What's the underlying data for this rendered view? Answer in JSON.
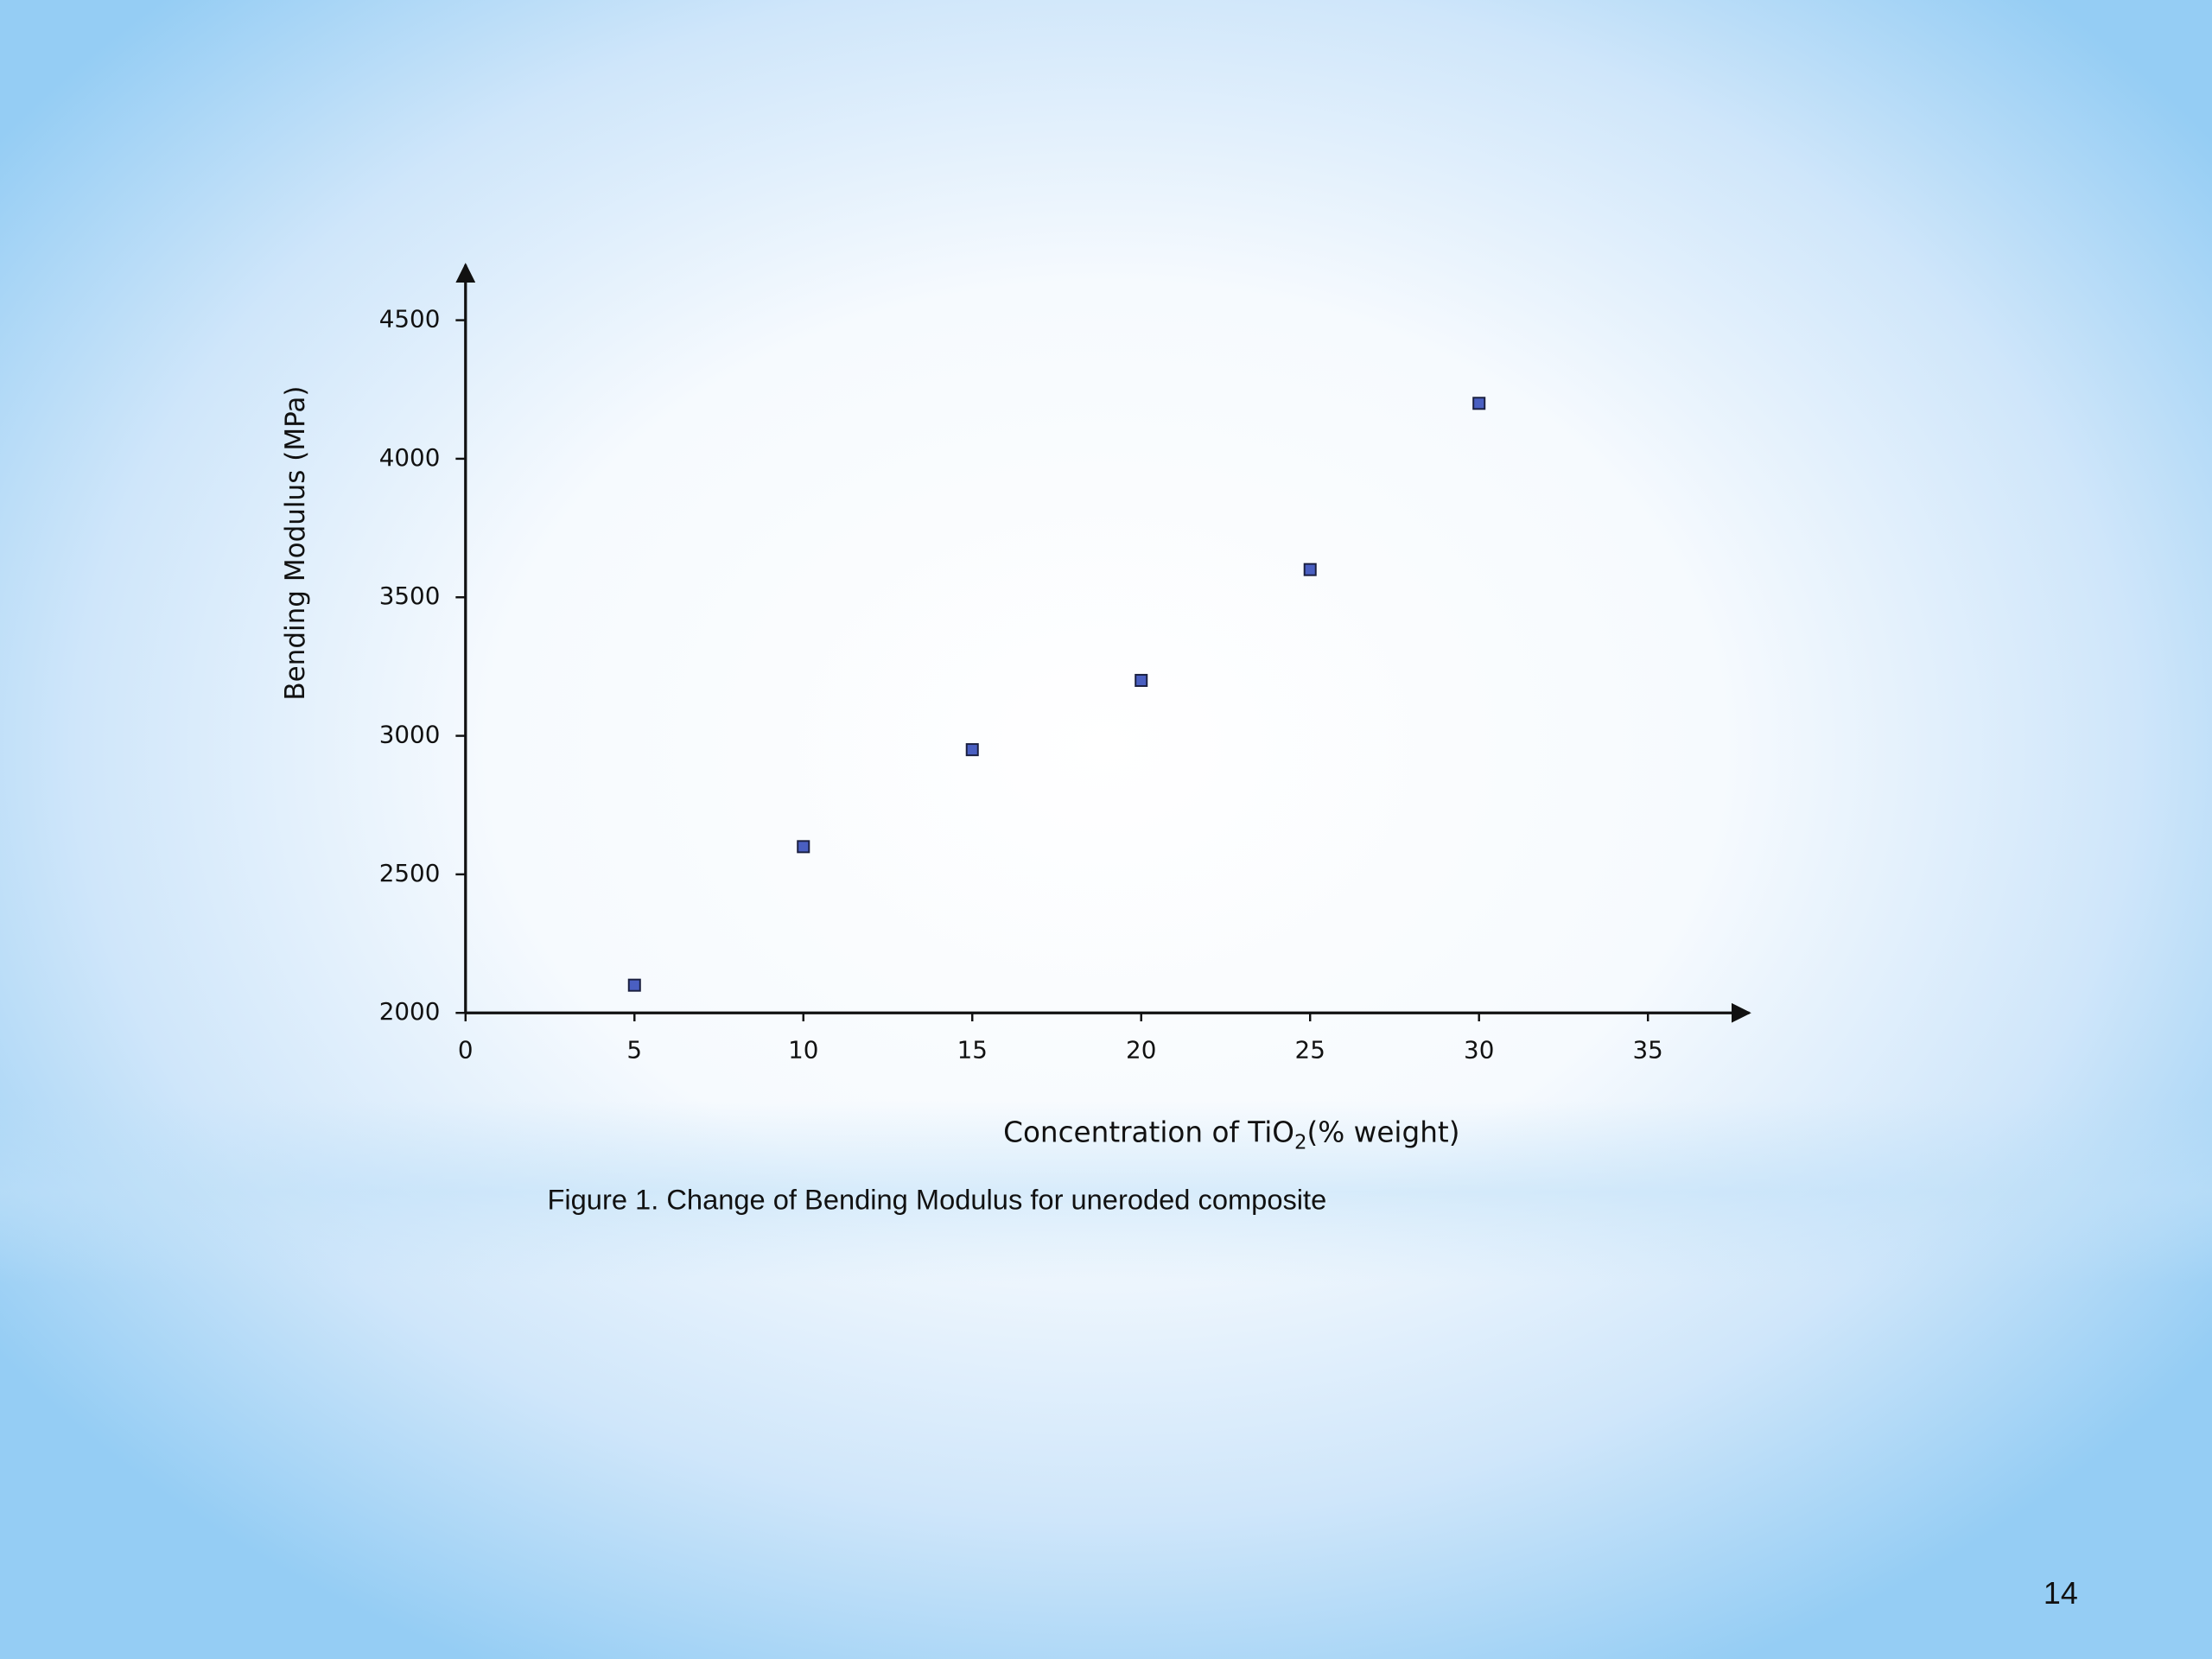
{
  "chart_data": {
    "type": "scatter",
    "x": [
      5,
      10,
      15,
      20,
      25,
      30
    ],
    "values": [
      2100,
      2600,
      2950,
      3200,
      3600,
      4200
    ],
    "color": "#4a5fc1",
    "x_label": [
      "Concentration of TiO",
      "2",
      "(% weight)"
    ],
    "y_label": "Bending Modulus (MPa)",
    "xlim": [
      0,
      38
    ],
    "xticks": [
      0,
      5,
      10,
      15,
      20,
      25,
      30,
      35
    ],
    "ylim": [
      2000,
      4700
    ],
    "yticks": [
      2000,
      2500,
      3000,
      3500,
      4000,
      4500
    ],
    "grid": false
  },
  "caption": "Figure 1. Change of Bending Modulus for uneroded composite",
  "page_number": "14"
}
